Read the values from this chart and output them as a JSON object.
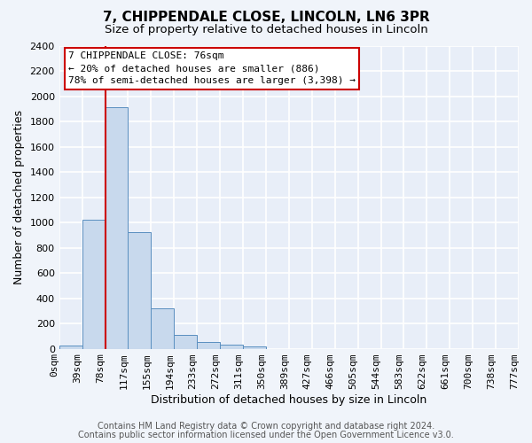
{
  "title": "7, CHIPPENDALE CLOSE, LINCOLN, LN6 3PR",
  "subtitle": "Size of property relative to detached houses in Lincoln",
  "xlabel": "Distribution of detached houses by size in Lincoln",
  "ylabel": "Number of detached properties",
  "bin_labels": [
    "0sqm",
    "39sqm",
    "78sqm",
    "117sqm",
    "155sqm",
    "194sqm",
    "233sqm",
    "272sqm",
    "311sqm",
    "350sqm",
    "389sqm",
    "427sqm",
    "466sqm",
    "505sqm",
    "544sqm",
    "583sqm",
    "622sqm",
    "661sqm",
    "700sqm",
    "738sqm",
    "777sqm"
  ],
  "bar_values": [
    25,
    1020,
    1910,
    920,
    320,
    110,
    55,
    35,
    15,
    0,
    0,
    0,
    0,
    0,
    0,
    0,
    0,
    0,
    0,
    0
  ],
  "bar_color": "#c8d9ed",
  "bar_edge_color": "#5a8fc0",
  "ylim": [
    0,
    2400
  ],
  "yticks": [
    0,
    200,
    400,
    600,
    800,
    1000,
    1200,
    1400,
    1600,
    1800,
    2000,
    2200,
    2400
  ],
  "vline_x": 2,
  "vline_color": "#cc0000",
  "annotation_box_text": "7 CHIPPENDALE CLOSE: 76sqm\n← 20% of detached houses are smaller (886)\n78% of semi-detached houses are larger (3,398) →",
  "footer_line1": "Contains HM Land Registry data © Crown copyright and database right 2024.",
  "footer_line2": "Contains public sector information licensed under the Open Government Licence v3.0.",
  "background_color": "#f0f4fa",
  "plot_background_color": "#e8eef8",
  "grid_color": "#ffffff",
  "title_fontsize": 11,
  "subtitle_fontsize": 9.5,
  "axis_label_fontsize": 9,
  "tick_fontsize": 8,
  "annotation_fontsize": 8,
  "footer_fontsize": 7
}
